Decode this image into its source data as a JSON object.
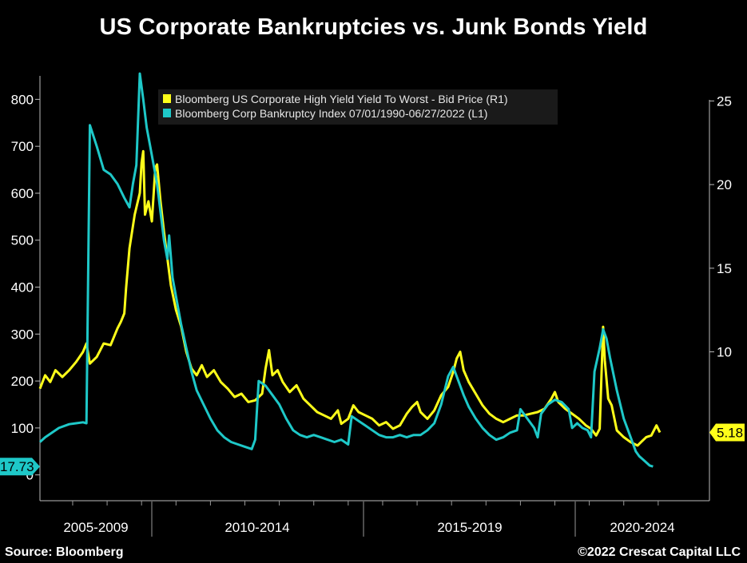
{
  "header": {
    "title": "US Corporate Bankruptcies vs. Junk Bonds Yield"
  },
  "footer": {
    "source": "Source: Bloomberg",
    "copyright": "©2022 Crescat Capital LLC"
  },
  "colors": {
    "background": "#000000",
    "yield": "#ffff1a",
    "bankruptcy": "#1ec8c8",
    "axis": "#bbbbbb"
  },
  "chart_data": {
    "type": "line",
    "title": "US Corporate Bankruptcies vs. Junk Bonds Yield",
    "x_range": [
      2004.55,
      2022.55
    ],
    "x_categories": [
      "2005-2009",
      "2010-2014",
      "2015-2019",
      "2020-2024"
    ],
    "y_left": {
      "ticks": [
        0,
        100,
        200,
        300,
        400,
        500,
        600,
        700,
        800
      ],
      "range": [
        -55,
        850
      ],
      "last_value_label": "17.73"
    },
    "y_right": {
      "ticks": [
        10,
        15,
        20,
        25
      ],
      "range": [
        1.1,
        26.5
      ],
      "last_value_label": "5.18"
    },
    "legend": [
      "Bloomberg US Corporate High Yield Yield To Worst - Bid Price (R1)",
      "Bloomberg Corp Bankruptcy Index 07/01/1990-06/27/2022 (L1)"
    ],
    "series": [
      {
        "name": "Bloomberg US Corporate High Yield Yield To Worst - Bid Price (R1)",
        "axis": "right",
        "points": [
          [
            2004.55,
            7.8
          ],
          [
            2004.7,
            8.6
          ],
          [
            2004.85,
            8.2
          ],
          [
            2005.0,
            8.9
          ],
          [
            2005.2,
            8.5
          ],
          [
            2005.4,
            8.9
          ],
          [
            2005.6,
            9.4
          ],
          [
            2005.8,
            10.0
          ],
          [
            2005.9,
            10.5
          ],
          [
            2006.0,
            9.3
          ],
          [
            2006.2,
            9.7
          ],
          [
            2006.4,
            10.5
          ],
          [
            2006.6,
            10.4
          ],
          [
            2006.8,
            11.4
          ],
          [
            2006.9,
            11.8
          ],
          [
            2007.0,
            12.3
          ],
          [
            2007.05,
            13.8
          ],
          [
            2007.15,
            16.2
          ],
          [
            2007.3,
            18.2
          ],
          [
            2007.45,
            19.5
          ],
          [
            2007.5,
            21.3
          ],
          [
            2007.55,
            22.0
          ],
          [
            2007.6,
            18.2
          ],
          [
            2007.7,
            19.0
          ],
          [
            2007.8,
            17.8
          ],
          [
            2007.9,
            21.0
          ],
          [
            2007.95,
            21.2
          ],
          [
            2008.05,
            19.0
          ],
          [
            2008.15,
            17.2
          ],
          [
            2008.25,
            15.6
          ],
          [
            2008.35,
            14.0
          ],
          [
            2008.5,
            12.5
          ],
          [
            2008.65,
            11.5
          ],
          [
            2008.8,
            10.0
          ],
          [
            2008.95,
            9.0
          ],
          [
            2009.1,
            8.6
          ],
          [
            2009.25,
            9.2
          ],
          [
            2009.4,
            8.5
          ],
          [
            2009.6,
            8.9
          ],
          [
            2009.8,
            8.2
          ],
          [
            2010.0,
            7.8
          ],
          [
            2010.2,
            7.3
          ],
          [
            2010.4,
            7.5
          ],
          [
            2010.6,
            7.0
          ],
          [
            2010.8,
            7.1
          ],
          [
            2011.0,
            7.5
          ],
          [
            2011.1,
            9.0
          ],
          [
            2011.2,
            10.1
          ],
          [
            2011.3,
            8.6
          ],
          [
            2011.45,
            8.9
          ],
          [
            2011.6,
            8.2
          ],
          [
            2011.8,
            7.6
          ],
          [
            2012.0,
            8.0
          ],
          [
            2012.2,
            7.2
          ],
          [
            2012.4,
            6.8
          ],
          [
            2012.6,
            6.4
          ],
          [
            2012.8,
            6.2
          ],
          [
            2013.0,
            6.0
          ],
          [
            2013.2,
            6.5
          ],
          [
            2013.3,
            5.7
          ],
          [
            2013.5,
            6.0
          ],
          [
            2013.65,
            6.8
          ],
          [
            2013.8,
            6.4
          ],
          [
            2014.0,
            6.2
          ],
          [
            2014.2,
            6.0
          ],
          [
            2014.4,
            5.6
          ],
          [
            2014.6,
            5.8
          ],
          [
            2014.8,
            5.4
          ],
          [
            2015.0,
            5.6
          ],
          [
            2015.2,
            6.3
          ],
          [
            2015.35,
            6.7
          ],
          [
            2015.5,
            7.0
          ],
          [
            2015.6,
            6.4
          ],
          [
            2015.8,
            6.0
          ],
          [
            2016.0,
            6.5
          ],
          [
            2016.2,
            7.4
          ],
          [
            2016.4,
            7.9
          ],
          [
            2016.55,
            8.8
          ],
          [
            2016.65,
            9.6
          ],
          [
            2016.75,
            10.0
          ],
          [
            2016.85,
            8.9
          ],
          [
            2017.0,
            8.2
          ],
          [
            2017.2,
            7.5
          ],
          [
            2017.4,
            6.8
          ],
          [
            2017.6,
            6.3
          ],
          [
            2017.8,
            6.0
          ],
          [
            2018.0,
            5.8
          ],
          [
            2018.2,
            6.0
          ],
          [
            2018.4,
            6.2
          ],
          [
            2018.6,
            6.2
          ],
          [
            2018.8,
            6.3
          ],
          [
            2019.0,
            6.4
          ],
          [
            2019.2,
            6.6
          ],
          [
            2019.4,
            7.2
          ],
          [
            2019.5,
            7.6
          ],
          [
            2019.6,
            7.0
          ],
          [
            2019.8,
            6.6
          ],
          [
            2020.0,
            6.3
          ],
          [
            2020.2,
            6.0
          ],
          [
            2020.4,
            5.6
          ],
          [
            2020.55,
            5.4
          ],
          [
            2020.7,
            5.0
          ],
          [
            2020.8,
            5.4
          ],
          [
            2020.9,
            11.5
          ],
          [
            2020.95,
            9.5
          ],
          [
            2021.05,
            7.2
          ],
          [
            2021.15,
            6.8
          ],
          [
            2021.3,
            5.3
          ],
          [
            2021.5,
            4.9
          ],
          [
            2021.7,
            4.6
          ],
          [
            2021.9,
            4.4
          ],
          [
            2022.0,
            4.6
          ],
          [
            2022.15,
            4.9
          ],
          [
            2022.3,
            5.0
          ],
          [
            2022.45,
            5.6
          ],
          [
            2022.55,
            5.18
          ]
        ]
      },
      {
        "name": "Bloomberg Corp Bankruptcy Index 07/01/1990-06/27/2022 (L1)",
        "axis": "left",
        "points": [
          [
            2004.55,
            70
          ],
          [
            2004.7,
            80
          ],
          [
            2004.9,
            90
          ],
          [
            2005.1,
            100
          ],
          [
            2005.4,
            108
          ],
          [
            2005.6,
            110
          ],
          [
            2005.8,
            112
          ],
          [
            2005.9,
            110
          ],
          [
            2006.0,
            745
          ],
          [
            2006.2,
            700
          ],
          [
            2006.4,
            650
          ],
          [
            2006.6,
            640
          ],
          [
            2006.8,
            620
          ],
          [
            2007.0,
            590
          ],
          [
            2007.15,
            570
          ],
          [
            2007.25,
            620
          ],
          [
            2007.35,
            660
          ],
          [
            2007.45,
            855
          ],
          [
            2007.55,
            800
          ],
          [
            2007.65,
            740
          ],
          [
            2007.75,
            700
          ],
          [
            2007.85,
            660
          ],
          [
            2007.95,
            620
          ],
          [
            2008.05,
            560
          ],
          [
            2008.15,
            500
          ],
          [
            2008.25,
            460
          ],
          [
            2008.3,
            510
          ],
          [
            2008.4,
            420
          ],
          [
            2008.5,
            380
          ],
          [
            2008.65,
            320
          ],
          [
            2008.8,
            270
          ],
          [
            2008.95,
            220
          ],
          [
            2009.1,
            180
          ],
          [
            2009.3,
            150
          ],
          [
            2009.5,
            120
          ],
          [
            2009.7,
            95
          ],
          [
            2009.9,
            80
          ],
          [
            2010.1,
            70
          ],
          [
            2010.3,
            65
          ],
          [
            2010.5,
            60
          ],
          [
            2010.7,
            55
          ],
          [
            2010.8,
            75
          ],
          [
            2010.9,
            200
          ],
          [
            2011.1,
            190
          ],
          [
            2011.3,
            170
          ],
          [
            2011.5,
            150
          ],
          [
            2011.7,
            120
          ],
          [
            2011.9,
            95
          ],
          [
            2012.1,
            85
          ],
          [
            2012.3,
            80
          ],
          [
            2012.5,
            85
          ],
          [
            2012.7,
            80
          ],
          [
            2012.9,
            75
          ],
          [
            2013.1,
            70
          ],
          [
            2013.3,
            75
          ],
          [
            2013.5,
            65
          ],
          [
            2013.6,
            125
          ],
          [
            2013.8,
            115
          ],
          [
            2014.0,
            105
          ],
          [
            2014.2,
            95
          ],
          [
            2014.4,
            85
          ],
          [
            2014.6,
            80
          ],
          [
            2014.8,
            80
          ],
          [
            2015.0,
            85
          ],
          [
            2015.2,
            80
          ],
          [
            2015.4,
            85
          ],
          [
            2015.6,
            85
          ],
          [
            2015.8,
            95
          ],
          [
            2016.0,
            110
          ],
          [
            2016.2,
            150
          ],
          [
            2016.4,
            210
          ],
          [
            2016.55,
            230
          ],
          [
            2016.7,
            200
          ],
          [
            2016.85,
            170
          ],
          [
            2017.0,
            145
          ],
          [
            2017.2,
            120
          ],
          [
            2017.4,
            100
          ],
          [
            2017.6,
            85
          ],
          [
            2017.8,
            75
          ],
          [
            2018.0,
            80
          ],
          [
            2018.2,
            90
          ],
          [
            2018.4,
            95
          ],
          [
            2018.5,
            140
          ],
          [
            2018.7,
            120
          ],
          [
            2018.9,
            100
          ],
          [
            2019.0,
            80
          ],
          [
            2019.1,
            130
          ],
          [
            2019.3,
            150
          ],
          [
            2019.5,
            160
          ],
          [
            2019.7,
            155
          ],
          [
            2019.9,
            140
          ],
          [
            2020.0,
            100
          ],
          [
            2020.15,
            110
          ],
          [
            2020.3,
            100
          ],
          [
            2020.45,
            95
          ],
          [
            2020.55,
            80
          ],
          [
            2020.65,
            220
          ],
          [
            2020.8,
            270
          ],
          [
            2020.9,
            310
          ],
          [
            2021.0,
            290
          ],
          [
            2021.1,
            250
          ],
          [
            2021.3,
            180
          ],
          [
            2021.5,
            120
          ],
          [
            2021.7,
            80
          ],
          [
            2021.85,
            50
          ],
          [
            2021.95,
            40
          ],
          [
            2022.1,
            30
          ],
          [
            2022.25,
            20
          ],
          [
            2022.35,
            17.73
          ]
        ]
      }
    ]
  }
}
